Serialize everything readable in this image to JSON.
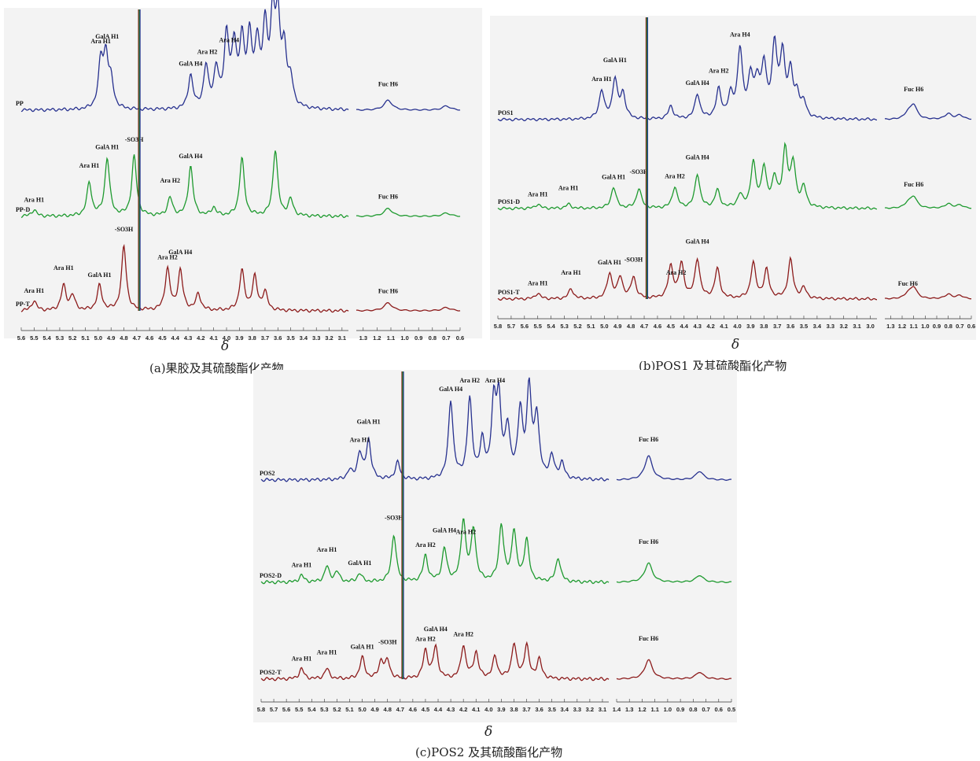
{
  "colors": {
    "blue": "#27318f",
    "green": "#1e9a2f",
    "red": "#8c1b1b",
    "axis": "#333333"
  },
  "panels": [
    {
      "id": "a",
      "caption": "(a)果胶及其硫酸酯化产物",
      "delta": "δ",
      "xticks_left": [
        "5.6",
        "5.5",
        "5.4",
        "5.3",
        "5.2",
        "5.1",
        "5.0",
        "4.9",
        "4.8",
        "4.7",
        "4.6",
        "4.5",
        "4.4",
        "4.3",
        "4.2",
        "4.1",
        "4.0",
        "3.9",
        "3.8",
        "3.7",
        "3.6",
        "3.5",
        "3.4",
        "3.3",
        "3.2",
        "3.1"
      ],
      "xticks_right": [
        "1.3",
        "1.2",
        "1.1",
        "1.0",
        "0.9",
        "0.8",
        "0.7",
        "0.6"
      ],
      "traces": [
        {
          "name": "PP",
          "color": "blue",
          "peaks": [
            "Ara H1",
            "GalA H1",
            "GalA H4",
            "Ara H2",
            "Ara H4",
            "Fuc H6"
          ]
        },
        {
          "name": "PP-D",
          "color": "green",
          "peaks": [
            "Ara H1",
            "Ara H1",
            "GalA H1",
            "-SO3H",
            "GalA H4",
            "Ara H2",
            "Fuc H6"
          ]
        },
        {
          "name": "PP-T",
          "color": "red",
          "peaks": [
            "Ara H1",
            "Ara H1",
            "GalA H1",
            "-SO3H",
            "Ara H2",
            "GalA H4",
            "Fuc H6"
          ]
        }
      ]
    },
    {
      "id": "b",
      "caption": "(b)POS1 及其硫酸酯化产物",
      "delta": "δ",
      "xticks_left": [
        "5.8",
        "5.7",
        "5.6",
        "5.5",
        "5.4",
        "5.3",
        "5.2",
        "5.1",
        "5.0",
        "4.9",
        "4.8",
        "4.7",
        "4.6",
        "4.5",
        "4.4",
        "4.3",
        "4.2",
        "4.1",
        "4.0",
        "3.9",
        "3.8",
        "3.7",
        "3.6",
        "3.5",
        "3.4",
        "3.3",
        "3.2",
        "3.1",
        "3.0"
      ],
      "xticks_right": [
        "1.3",
        "1.2",
        "1.1",
        "1.0",
        "0.9",
        "0.8",
        "0.7",
        "0.6"
      ],
      "traces": [
        {
          "name": "POS1",
          "color": "blue",
          "peaks": [
            "Ara H1",
            "GalA H1",
            "GalA H4",
            "Ara H2",
            "Ara H4",
            "Fuc H6"
          ]
        },
        {
          "name": "POS1-D",
          "color": "green",
          "peaks": [
            "Ara H1",
            "Ara H1",
            "GalA H1",
            "-SO3H",
            "Ara H2",
            "GalA H4",
            "Fuc H6"
          ]
        },
        {
          "name": "POS1-T",
          "color": "red",
          "peaks": [
            "Ara H1",
            "Ara H1",
            "GalA H1",
            "-SO3H",
            "Ara H2",
            "GalA H4",
            "Fuc H6"
          ]
        }
      ]
    },
    {
      "id": "c",
      "caption": "(c)POS2 及其硫酸酯化产物",
      "delta": "δ",
      "xticks_left": [
        "5.8",
        "5.7",
        "5.6",
        "5.5",
        "5.4",
        "5.3",
        "5.2",
        "5.1",
        "5.0",
        "4.9",
        "4.8",
        "4.7",
        "4.6",
        "4.5",
        "4.4",
        "4.3",
        "4.2",
        "4.1",
        "4.0",
        "3.9",
        "3.8",
        "3.7",
        "3.6",
        "3.5",
        "3.4",
        "3.3",
        "3.2",
        "3.1"
      ],
      "xticks_right": [
        "1.4",
        "1.3",
        "1.2",
        "1.1",
        "1.0",
        "0.9",
        "0.8",
        "0.7",
        "0.6",
        "0.5"
      ],
      "traces": [
        {
          "name": "POS2",
          "color": "blue",
          "peaks": [
            "Ara H1",
            "GalA H1",
            "GalA H4",
            "Ara H2",
            "Ara H4",
            "Fuc H6"
          ]
        },
        {
          "name": "POS2-D",
          "color": "green",
          "peaks": [
            "Ara H1",
            "Ara H1",
            "GalA H1",
            "-SO3H",
            "Ara H2",
            "GalA H4",
            "Ara H2",
            "Fuc H6"
          ]
        },
        {
          "name": "POS2-T",
          "color": "red",
          "peaks": [
            "Ara H1",
            "Ara H1",
            "GalA H1",
            "-SO3H",
            "Ara H2",
            "GalA H4",
            "Ara H2",
            "Fuc H6"
          ]
        }
      ]
    }
  ],
  "chart_data": [
    {
      "type": "line",
      "panel": "a",
      "xlabel": "δ",
      "x_reversed": true,
      "xlim_left": [
        3.05,
        5.6
      ],
      "xlim_right": [
        0.6,
        1.35
      ],
      "series": [
        {
          "name": "PP"
        },
        {
          "name": "PP-D"
        },
        {
          "name": "PP-T"
        }
      ],
      "peak_labels": {
        "PP": [
          {
            "label": "Ara H1",
            "x": 4.98
          },
          {
            "label": "GalA H1",
            "x": 4.93
          },
          {
            "label": "GalA H4",
            "x": 4.28
          },
          {
            "label": "Ara H2",
            "x": 4.15
          },
          {
            "label": "Ara H4",
            "x": 3.98
          },
          {
            "label": "Fuc H6",
            "x": 1.12
          }
        ],
        "PP-D": [
          {
            "label": "Ara H1",
            "x": 5.5
          },
          {
            "label": "Ara H1",
            "x": 5.07
          },
          {
            "label": "GalA H1",
            "x": 4.93
          },
          {
            "label": "-SO3H",
            "x": 4.72
          },
          {
            "label": "GalA H4",
            "x": 4.28
          },
          {
            "label": "Ara H2",
            "x": 4.44
          },
          {
            "label": "Fuc H6",
            "x": 1.12
          }
        ],
        "PP-T": [
          {
            "label": "Ara H1",
            "x": 5.5
          },
          {
            "label": "Ara H1",
            "x": 5.27
          },
          {
            "label": "GalA H1",
            "x": 4.99
          },
          {
            "label": "-SO3H",
            "x": 4.8
          },
          {
            "label": "Ara H2",
            "x": 4.46
          },
          {
            "label": "GalA H4",
            "x": 4.36
          },
          {
            "label": "Fuc H6",
            "x": 1.12
          }
        ]
      }
    },
    {
      "type": "line",
      "panel": "b",
      "xlabel": "δ",
      "x_reversed": true,
      "xlim_left": [
        2.95,
        5.8
      ],
      "xlim_right": [
        0.6,
        1.35
      ],
      "series": [
        {
          "name": "POS1"
        },
        {
          "name": "POS1-D"
        },
        {
          "name": "POS1-T"
        }
      ],
      "peak_labels": {
        "POS1": [
          {
            "label": "Ara H1",
            "x": 5.02
          },
          {
            "label": "GalA H1",
            "x": 4.92
          },
          {
            "label": "GalA H4",
            "x": 4.3
          },
          {
            "label": "Ara H2",
            "x": 4.14
          },
          {
            "label": "Ara H4",
            "x": 3.98
          },
          {
            "label": "Fuc H6",
            "x": 1.1
          }
        ],
        "POS1-D": [
          {
            "label": "Ara H1",
            "x": 5.5
          },
          {
            "label": "Ara H1",
            "x": 5.27
          },
          {
            "label": "GalA H1",
            "x": 4.93
          },
          {
            "label": "-SO3H",
            "x": 4.74
          },
          {
            "label": "Ara H2",
            "x": 4.47
          },
          {
            "label": "GalA H4",
            "x": 4.3
          },
          {
            "label": "Fuc H6",
            "x": 1.1
          }
        ],
        "POS1-T": [
          {
            "label": "Ara H1",
            "x": 5.5
          },
          {
            "label": "Ara H1",
            "x": 5.25
          },
          {
            "label": "GalA H1",
            "x": 4.96
          },
          {
            "label": "-SO3H",
            "x": 4.78
          },
          {
            "label": "Ara H2",
            "x": 4.46
          },
          {
            "label": "GalA H4",
            "x": 4.3
          },
          {
            "label": "Fuc H6",
            "x": 1.15
          }
        ]
      }
    },
    {
      "type": "line",
      "panel": "c",
      "xlabel": "δ",
      "x_reversed": true,
      "xlim_left": [
        3.05,
        5.8
      ],
      "xlim_right": [
        0.5,
        1.4
      ],
      "series": [
        {
          "name": "POS2"
        },
        {
          "name": "POS2-D"
        },
        {
          "name": "POS2-T"
        }
      ],
      "peak_labels": {
        "POS2": [
          {
            "label": "Ara H1",
            "x": 5.02
          },
          {
            "label": "GalA H1",
            "x": 4.95
          },
          {
            "label": "GalA H4",
            "x": 4.3
          },
          {
            "label": "Ara H2",
            "x": 4.15
          },
          {
            "label": "Ara H4",
            "x": 3.95
          },
          {
            "label": "Fuc H6",
            "x": 1.15
          }
        ],
        "POS2-D": [
          {
            "label": "Ara H1",
            "x": 5.48
          },
          {
            "label": "Ara H1",
            "x": 5.28
          },
          {
            "label": "GalA H1",
            "x": 5.02
          },
          {
            "label": "-SO3H",
            "x": 4.75
          },
          {
            "label": "Ara H2",
            "x": 4.5
          },
          {
            "label": "GalA H4",
            "x": 4.35
          },
          {
            "label": "Ara H2",
            "x": 4.18
          },
          {
            "label": "Fuc H6",
            "x": 1.15
          }
        ],
        "POS2-T": [
          {
            "label": "Ara H1",
            "x": 5.48
          },
          {
            "label": "Ara H1",
            "x": 5.28
          },
          {
            "label": "GalA H1",
            "x": 5.0
          },
          {
            "label": "-SO3H",
            "x": 4.8
          },
          {
            "label": "Ara H2",
            "x": 4.5
          },
          {
            "label": "GalA H4",
            "x": 4.42
          },
          {
            "label": "Ara H2",
            "x": 4.2
          },
          {
            "label": "Fuc H6",
            "x": 1.15
          }
        ]
      }
    }
  ]
}
